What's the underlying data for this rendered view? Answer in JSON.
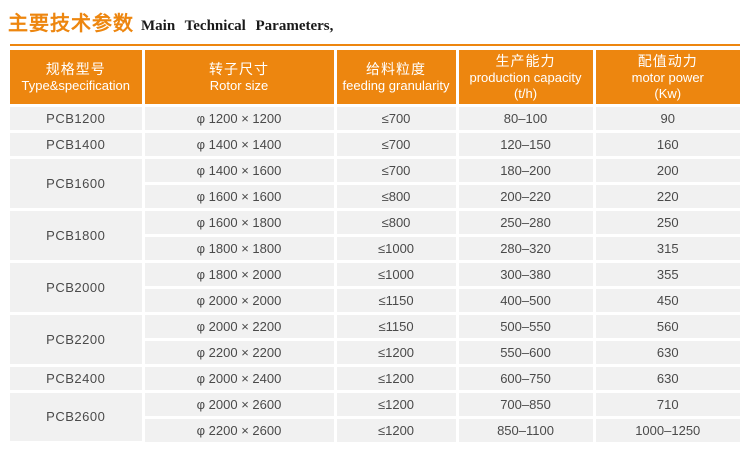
{
  "colors": {
    "accent_orange": "#ED860F",
    "row_background": "#F1F1F1",
    "header_text": "#FFFFFF",
    "body_text": "#4A4A4A",
    "title_english": "#1A1A1A"
  },
  "title": {
    "zh": "主要技术参数",
    "en": "Main Technical Parameters,"
  },
  "table": {
    "columns": [
      {
        "key": "type",
        "zh": "规格型号",
        "en": "Type&specification"
      },
      {
        "key": "rotor",
        "zh": "转子尺寸",
        "en": "Rotor size"
      },
      {
        "key": "feed",
        "zh": "给料粒度",
        "en": "feeding granularity"
      },
      {
        "key": "capacity",
        "zh": "生产能力",
        "en": "production capacity",
        "en2": "(t/h)"
      },
      {
        "key": "power",
        "zh": "配值动力",
        "en": "motor power",
        "en2": "(Kw)"
      }
    ],
    "groups": [
      {
        "model": "PCB1200",
        "rows": [
          {
            "rotor": "φ 1200 × 1200",
            "feed": "≤700",
            "capacity": "80–100",
            "power": "90"
          }
        ]
      },
      {
        "model": "PCB1400",
        "rows": [
          {
            "rotor": "φ 1400 × 1400",
            "feed": "≤700",
            "capacity": "120–150",
            "power": "160"
          }
        ]
      },
      {
        "model": "PCB1600",
        "rows": [
          {
            "rotor": "φ 1400 × 1600",
            "feed": "≤700",
            "capacity": "180–200",
            "power": "200"
          },
          {
            "rotor": "φ 1600 × 1600",
            "feed": "≤800",
            "capacity": "200–220",
            "power": "220"
          }
        ]
      },
      {
        "model": "PCB1800",
        "rows": [
          {
            "rotor": "φ 1600 × 1800",
            "feed": "≤800",
            "capacity": "250–280",
            "power": "250"
          },
          {
            "rotor": "φ 1800 × 1800",
            "feed": "≤1000",
            "capacity": "280–320",
            "power": "315"
          }
        ]
      },
      {
        "model": "PCB2000",
        "rows": [
          {
            "rotor": "φ 1800 × 2000",
            "feed": "≤1000",
            "capacity": "300–380",
            "power": "355"
          },
          {
            "rotor": "φ 2000 × 2000",
            "feed": "≤1150",
            "capacity": "400–500",
            "power": "450"
          }
        ]
      },
      {
        "model": "PCB2200",
        "rows": [
          {
            "rotor": "φ 2000 × 2200",
            "feed": "≤1150",
            "capacity": "500–550",
            "power": "560"
          },
          {
            "rotor": "φ 2200 × 2200",
            "feed": "≤1200",
            "capacity": "550–600",
            "power": "630"
          }
        ]
      },
      {
        "model": "PCB2400",
        "rows": [
          {
            "rotor": "φ 2000 × 2400",
            "feed": "≤1200",
            "capacity": "600–750",
            "power": "630"
          }
        ]
      },
      {
        "model": "PCB2600",
        "rows": [
          {
            "rotor": "φ 2000 × 2600",
            "feed": "≤1200",
            "capacity": "700–850",
            "power": "710"
          },
          {
            "rotor": "φ 2200 × 2600",
            "feed": "≤1200",
            "capacity": "850–1100",
            "power": "1000–1250"
          }
        ]
      }
    ]
  }
}
